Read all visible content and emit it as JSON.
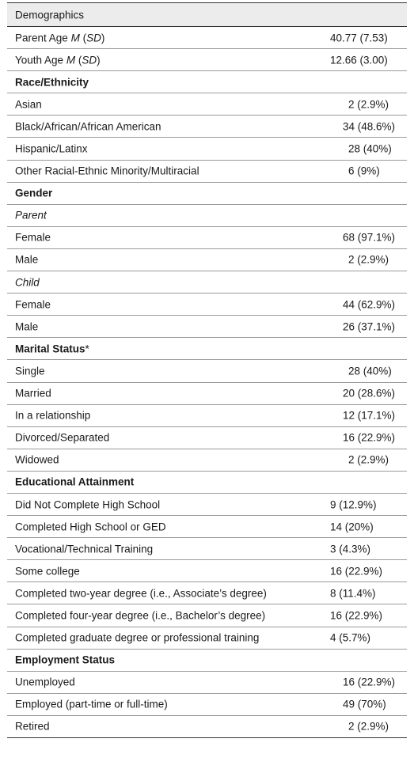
{
  "table": {
    "header": "Demographics",
    "rows": [
      {
        "kind": "data",
        "parts": [
          "Parent Age ",
          "M",
          " (",
          "SD",
          ")"
        ],
        "value": "40.77 (7.53)"
      },
      {
        "kind": "data",
        "parts": [
          "Youth Age ",
          "M",
          " (",
          "SD",
          ")"
        ],
        "value": "12.66 (3.00)"
      },
      {
        "kind": "section",
        "label": "Race/Ethnicity"
      },
      {
        "kind": "data",
        "label": "Asian",
        "value": "2 (2.9%)"
      },
      {
        "kind": "data",
        "label": "Black/African/African American",
        "value": "34 (48.6%)"
      },
      {
        "kind": "data",
        "label": "Hispanic/Latinx",
        "value": "28 (40%)"
      },
      {
        "kind": "data",
        "label": "Other Racial-Ethnic Minority/Multiracial",
        "value": "6 (9%)"
      },
      {
        "kind": "section",
        "label": "Gender"
      },
      {
        "kind": "sub",
        "label": "Parent"
      },
      {
        "kind": "data",
        "label": "Female",
        "value": "68 (97.1%)"
      },
      {
        "kind": "data",
        "label": "Male",
        "value": "2 (2.9%)"
      },
      {
        "kind": "sub",
        "label": "Child"
      },
      {
        "kind": "data",
        "label": "Female",
        "value": "44 (62.9%)"
      },
      {
        "kind": "data",
        "label": "Male",
        "value": "26 (37.1%)"
      },
      {
        "kind": "section",
        "label": "Marital Status",
        "suffix": "*"
      },
      {
        "kind": "data",
        "label": "Single",
        "value": "28 (40%)"
      },
      {
        "kind": "data",
        "label": "Married",
        "value": "20 (28.6%)"
      },
      {
        "kind": "data",
        "label": "In a relationship",
        "value": "12 (17.1%)"
      },
      {
        "kind": "data",
        "label": "Divorced/Separated",
        "value": "16 (22.9%)"
      },
      {
        "kind": "data",
        "label": "Widowed",
        "value": "2 (2.9%)"
      },
      {
        "kind": "section",
        "label": "Educational Attainment"
      },
      {
        "kind": "data",
        "label": "Did Not Complete High School",
        "value": "9 (12.9%)"
      },
      {
        "kind": "data",
        "label": "Completed High School or GED",
        "value": "14 (20%)"
      },
      {
        "kind": "data",
        "label": "Vocational/Technical Training",
        "value": "3 (4.3%)"
      },
      {
        "kind": "data",
        "label": "Some college",
        "value": "16 (22.9%)"
      },
      {
        "kind": "data",
        "label": "Completed two-year degree (i.e., Associate’s degree)",
        "value": "8 (11.4%)"
      },
      {
        "kind": "data",
        "label": "Completed four-year degree (i.e., Bachelor’s degree)",
        "value": "16 (22.9%)"
      },
      {
        "kind": "data",
        "label": "Completed graduate degree or professional training",
        "value": "4 (5.7%)"
      },
      {
        "kind": "section",
        "label": "Employment Status"
      },
      {
        "kind": "data",
        "label": "Unemployed",
        "value": "16 (22.9%)"
      },
      {
        "kind": "data",
        "label": "Employed (part-time or full-time)",
        "value": "49 (70%)"
      },
      {
        "kind": "data",
        "label": "Retired",
        "value": "2 (2.9%)"
      }
    ]
  }
}
